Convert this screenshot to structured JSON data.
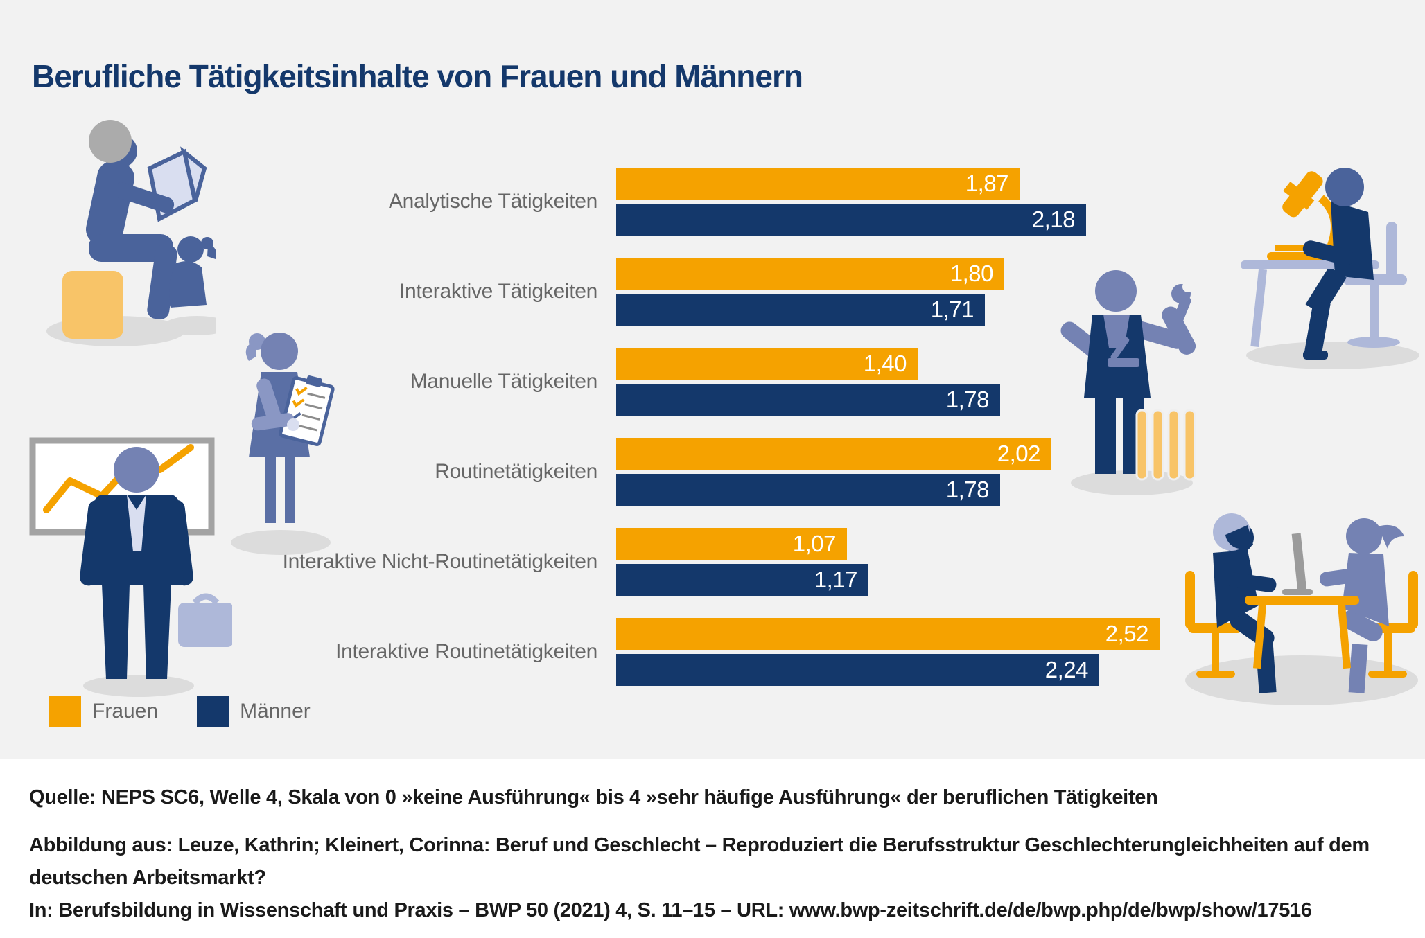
{
  "title": "Berufliche Tätigkeitsinhalte von Frauen und Männern",
  "colors": {
    "bg_gray": "#F2F2F2",
    "orange": "#F5A200",
    "navy": "#14386B",
    "label_gray": "#666666",
    "footer_black": "#1A1A1A",
    "slate": "#7482B3",
    "medium_blue": "#4A639B",
    "dress_blue": "#5A6FA5",
    "arm_light": "#8A97C4",
    "periwinkle": "#AEB8D9",
    "pale_blue": "#D9DEF0",
    "light_orange": "#F8C468",
    "hair_gray": "#ABABAB",
    "shadow": "#DCDCDC",
    "monitor_gray": "#9B9B9B",
    "board_border": "#A3A3A3"
  },
  "chart_data": {
    "type": "bar",
    "orientation": "horizontal",
    "title": "Berufliche Tätigkeitsinhalte von Frauen und Männern",
    "categories": [
      "Analytische Tätigkeiten",
      "Interaktive Tätigkeiten",
      "Manuelle Tätigkeiten",
      "Routinetätigkeiten",
      "Interaktive Nicht-Routinetätigkeiten",
      "Interaktive Routinetätigkeiten"
    ],
    "series": [
      {
        "name": "Frauen",
        "color": "#F5A200",
        "values": [
          1.87,
          1.8,
          1.4,
          2.02,
          1.07,
          2.52
        ],
        "labels": [
          "1,87",
          "1,80",
          "1,40",
          "2,02",
          "1,07",
          "2,52"
        ]
      },
      {
        "name": "Männer",
        "color": "#14386B",
        "values": [
          2.18,
          1.71,
          1.78,
          1.78,
          1.17,
          2.24
        ],
        "labels": [
          "2,18",
          "1,71",
          "1,78",
          "1,78",
          "1,17",
          "2,24"
        ]
      }
    ],
    "value_scale_range": [
      0,
      4
    ],
    "grid": false,
    "legend_position": "bottom-left",
    "value_labels_inside_bars": true
  },
  "legend": {
    "items": [
      {
        "label": "Frauen",
        "color": "#F5A200"
      },
      {
        "label": "Männer",
        "color": "#14386B"
      }
    ]
  },
  "footer": {
    "source_line": "Quelle: NEPS SC6, Welle 4, Skala von 0 »keine Ausführung« bis 4 »sehr häufige Ausführung« der beruflichen Tätigkeiten",
    "attribution_line1": "Abbildung aus: Leuze, Kathrin; Kleinert, Corinna: Beruf und Geschlecht – Reproduziert die Berufsstruktur Geschlechterungleichheiten auf dem",
    "attribution_line2": "deutschen Arbeitsmarkt?",
    "publication_line": "In: Berufsbildung in Wissenschaft und Praxis – BWP 50 (2021) 4, S. 11–15 – URL: www.bwp-zeitschrift.de/de/bwp.php/de/bwp/show/17516"
  },
  "illustrations": [
    "adult-reading-to-child",
    "woman-with-clipboard",
    "businessman-with-flipchart",
    "worker-with-wrench",
    "researcher-with-microscope",
    "two-people-at-computer-desk"
  ]
}
